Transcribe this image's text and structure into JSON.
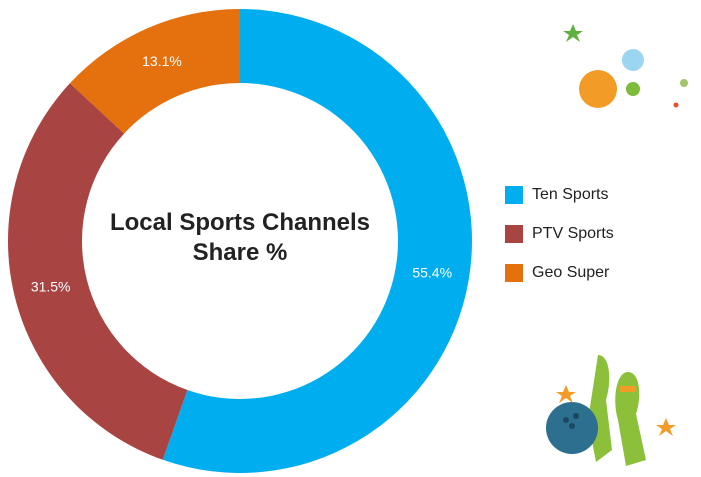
{
  "chart_data": {
    "type": "donut",
    "title": "Local Sports Channels Share %",
    "categories": [
      "Ten Sports",
      "PTV Sports",
      "Geo Super"
    ],
    "values": [
      55.4,
      31.5,
      13.1
    ],
    "value_labels": [
      "55.4%",
      "31.5%",
      "13.1%"
    ],
    "colors": [
      "#00aeef",
      "#a84442",
      "#e5700e"
    ],
    "legend": "right"
  }
}
